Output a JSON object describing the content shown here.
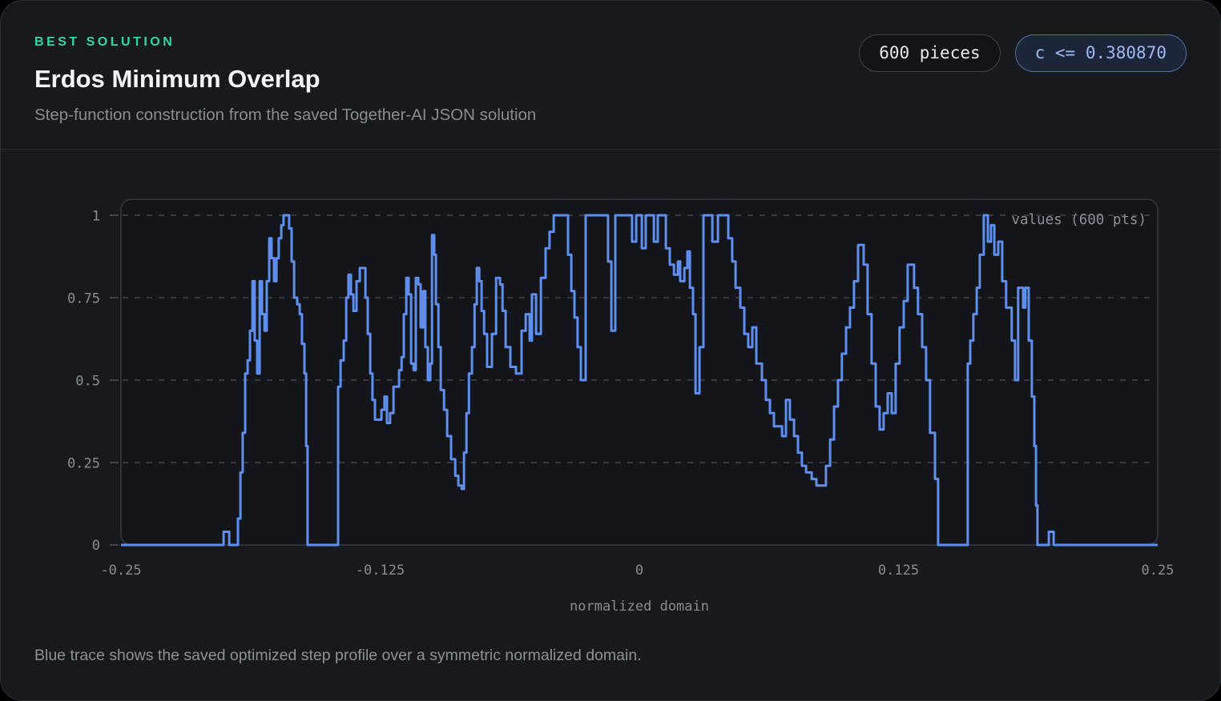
{
  "header": {
    "eyebrow": "BEST SOLUTION",
    "title": "Erdos Minimum Overlap",
    "subtitle": "Step-function construction from the saved Together-AI JSON solution",
    "badges": [
      {
        "label": "600 pieces",
        "style": "neutral"
      },
      {
        "label": "c <= 0.380870",
        "style": "accent"
      }
    ]
  },
  "footer": {
    "caption": "Blue trace shows the saved optimized step profile over a symmetric normalized domain."
  },
  "colors": {
    "page_background": "#000000",
    "card_background": "#17191d",
    "card_border": "#2b2e33",
    "accent_green": "#2ed9a0",
    "accent_blue_text": "#9db9f5",
    "accent_blue_border": "#4f6fa8",
    "trace_blue": "#5f8fee",
    "grid_gray": "#3e434a",
    "axis_text_gray": "#878d95"
  },
  "chart_data": {
    "type": "line",
    "interpolation": "step-after",
    "xlabel": "normalized domain",
    "ylabel": "",
    "xlim": [
      -0.25,
      0.25
    ],
    "ylim": [
      0,
      1
    ],
    "xticks": [
      -0.25,
      -0.125,
      0,
      0.125,
      0.25
    ],
    "xtick_labels": [
      "-0.25",
      "-0.125",
      "0",
      "0.125",
      "0.25"
    ],
    "ytick_labels": [
      "0",
      "0.25",
      "0.5",
      "0.75",
      "1"
    ],
    "grid": "horizontal-dashed",
    "legend_position": "top-right-inside",
    "series": [
      {
        "name": "values (600 pts)",
        "color": "#5f8fee",
        "points_claimed": 600,
        "steps": [
          [
            -0.25,
            0
          ],
          [
            -0.2005,
            0.04
          ],
          [
            -0.1978,
            0
          ],
          [
            -0.1936,
            0.08
          ],
          [
            -0.1924,
            0.22
          ],
          [
            -0.1913,
            0.34
          ],
          [
            -0.1901,
            0.52
          ],
          [
            -0.1889,
            0.56
          ],
          [
            -0.1878,
            0.65
          ],
          [
            -0.1866,
            0.8
          ],
          [
            -0.1855,
            0.62
          ],
          [
            -0.1843,
            0.52
          ],
          [
            -0.1831,
            0.8
          ],
          [
            -0.182,
            0.7
          ],
          [
            -0.1808,
            0.65
          ],
          [
            -0.1797,
            0.8
          ],
          [
            -0.1785,
            0.93
          ],
          [
            -0.1774,
            0.87
          ],
          [
            -0.1762,
            0.8
          ],
          [
            -0.175,
            0.87
          ],
          [
            -0.1739,
            0.93
          ],
          [
            -0.1727,
            0.97
          ],
          [
            -0.1716,
            1
          ],
          [
            -0.1689,
            0.96
          ],
          [
            -0.1677,
            0.86
          ],
          [
            -0.1665,
            0.75
          ],
          [
            -0.165,
            0.73
          ],
          [
            -0.1638,
            0.7
          ],
          [
            -0.1627,
            0.61
          ],
          [
            -0.1615,
            0.52
          ],
          [
            -0.1607,
            0.3
          ],
          [
            -0.16,
            0
          ],
          [
            -0.1453,
            0.48
          ],
          [
            -0.1441,
            0.56
          ],
          [
            -0.1426,
            0.62
          ],
          [
            -0.1414,
            0.75
          ],
          [
            -0.1403,
            0.82
          ],
          [
            -0.1391,
            0.76
          ],
          [
            -0.1379,
            0.71
          ],
          [
            -0.1364,
            0.8
          ],
          [
            -0.1348,
            0.84
          ],
          [
            -0.1321,
            0.75
          ],
          [
            -0.131,
            0.64
          ],
          [
            -0.1298,
            0.52
          ],
          [
            -0.1287,
            0.44
          ],
          [
            -0.1275,
            0.38
          ],
          [
            -0.1244,
            0.41
          ],
          [
            -0.1229,
            0.45
          ],
          [
            -0.1217,
            0.37
          ],
          [
            -0.1202,
            0.4
          ],
          [
            -0.1186,
            0.48
          ],
          [
            -0.1159,
            0.53
          ],
          [
            -0.1147,
            0.57
          ],
          [
            -0.1136,
            0.7
          ],
          [
            -0.1124,
            0.81
          ],
          [
            -0.1113,
            0.76
          ],
          [
            -0.1101,
            0.55
          ],
          [
            -0.1089,
            0.53
          ],
          [
            -0.1078,
            0.81
          ],
          [
            -0.1066,
            0.79
          ],
          [
            -0.1055,
            0.66
          ],
          [
            -0.1043,
            0.77
          ],
          [
            -0.1032,
            0.6
          ],
          [
            -0.102,
            0.5
          ],
          [
            -0.1008,
            0.55
          ],
          [
            -0.1,
            0.94
          ],
          [
            -0.0989,
            0.88
          ],
          [
            -0.0981,
            0.73
          ],
          [
            -0.0969,
            0.6
          ],
          [
            -0.0958,
            0.47
          ],
          [
            -0.0942,
            0.41
          ],
          [
            -0.0927,
            0.33
          ],
          [
            -0.0908,
            0.26
          ],
          [
            -0.0888,
            0.21
          ],
          [
            -0.0873,
            0.18
          ],
          [
            -0.0857,
            0.17
          ],
          [
            -0.0846,
            0.28
          ],
          [
            -0.0834,
            0.4
          ],
          [
            -0.0822,
            0.52
          ],
          [
            -0.0807,
            0.6
          ],
          [
            -0.0795,
            0.73
          ],
          [
            -0.0784,
            0.84
          ],
          [
            -0.0772,
            0.8
          ],
          [
            -0.0761,
            0.71
          ],
          [
            -0.0749,
            0.64
          ],
          [
            -0.0734,
            0.54
          ],
          [
            -0.0711,
            0.64
          ],
          [
            -0.0691,
            0.81
          ],
          [
            -0.0672,
            0.79
          ],
          [
            -0.066,
            0.71
          ],
          [
            -0.0645,
            0.6
          ],
          [
            -0.0622,
            0.54
          ],
          [
            -0.0595,
            0.52
          ],
          [
            -0.0568,
            0.65
          ],
          [
            -0.0548,
            0.7
          ],
          [
            -0.0529,
            0.62
          ],
          [
            -0.0518,
            0.76
          ],
          [
            -0.0498,
            0.64
          ],
          [
            -0.0475,
            0.81
          ],
          [
            -0.0452,
            0.9
          ],
          [
            -0.0433,
            0.95
          ],
          [
            -0.0413,
            1
          ],
          [
            -0.0344,
            0.88
          ],
          [
            -0.0328,
            0.77
          ],
          [
            -0.0313,
            0.69
          ],
          [
            -0.0298,
            0.6
          ],
          [
            -0.0282,
            0.5
          ],
          [
            -0.0259,
            1
          ],
          [
            -0.0151,
            0.86
          ],
          [
            -0.0135,
            0.65
          ],
          [
            -0.0116,
            1
          ],
          [
            -0.0035,
            0.92
          ],
          [
            -0.0015,
            1
          ],
          [
            0.0012,
            0.9
          ],
          [
            0.0031,
            1
          ],
          [
            0.007,
            0.92
          ],
          [
            0.0089,
            1
          ],
          [
            0.0128,
            0.9
          ],
          [
            0.0147,
            0.85
          ],
          [
            0.0167,
            0.82
          ],
          [
            0.0186,
            0.86
          ],
          [
            0.0197,
            0.8
          ],
          [
            0.0217,
            0.84
          ],
          [
            0.0232,
            0.89
          ],
          [
            0.0244,
            0.78
          ],
          [
            0.0259,
            0.7
          ],
          [
            0.0271,
            0.46
          ],
          [
            0.029,
            0.6
          ],
          [
            0.0309,
            1
          ],
          [
            0.0352,
            0.92
          ],
          [
            0.0379,
            1
          ],
          [
            0.0429,
            0.93
          ],
          [
            0.0448,
            0.86
          ],
          [
            0.0464,
            0.78
          ],
          [
            0.0487,
            0.72
          ],
          [
            0.0506,
            0.64
          ],
          [
            0.0525,
            0.6
          ],
          [
            0.0545,
            0.66
          ],
          [
            0.0564,
            0.55
          ],
          [
            0.0591,
            0.5
          ],
          [
            0.061,
            0.44
          ],
          [
            0.063,
            0.4
          ],
          [
            0.0649,
            0.36
          ],
          [
            0.0688,
            0.33
          ],
          [
            0.0707,
            0.44
          ],
          [
            0.0726,
            0.38
          ],
          [
            0.0746,
            0.33
          ],
          [
            0.0765,
            0.28
          ],
          [
            0.0784,
            0.24
          ],
          [
            0.0804,
            0.22
          ],
          [
            0.0831,
            0.2
          ],
          [
            0.0854,
            0.18
          ],
          [
            0.09,
            0.24
          ],
          [
            0.092,
            0.32
          ],
          [
            0.0939,
            0.42
          ],
          [
            0.0958,
            0.5
          ],
          [
            0.0977,
            0.58
          ],
          [
            0.0997,
            0.66
          ],
          [
            0.1016,
            0.72
          ],
          [
            0.1035,
            0.8
          ],
          [
            0.1055,
            0.91
          ],
          [
            0.1082,
            0.85
          ],
          [
            0.1101,
            0.7
          ],
          [
            0.112,
            0.55
          ],
          [
            0.114,
            0.42
          ],
          [
            0.1159,
            0.35
          ],
          [
            0.1178,
            0.4
          ],
          [
            0.1198,
            0.46
          ],
          [
            0.1217,
            0.4
          ],
          [
            0.1236,
            0.55
          ],
          [
            0.1255,
            0.66
          ],
          [
            0.1275,
            0.74
          ],
          [
            0.1294,
            0.85
          ],
          [
            0.1325,
            0.78
          ],
          [
            0.1344,
            0.7
          ],
          [
            0.1364,
            0.6
          ],
          [
            0.1383,
            0.5
          ],
          [
            0.1402,
            0.34
          ],
          [
            0.1426,
            0.2
          ],
          [
            0.1441,
            0
          ],
          [
            0.1584,
            0.55
          ],
          [
            0.1596,
            0.62
          ],
          [
            0.1611,
            0.7
          ],
          [
            0.1627,
            0.78
          ],
          [
            0.1642,
            0.88
          ],
          [
            0.1661,
            1
          ],
          [
            0.1681,
            0.92
          ],
          [
            0.1696,
            0.97
          ],
          [
            0.1712,
            0.88
          ],
          [
            0.1731,
            0.92
          ],
          [
            0.175,
            0.8
          ],
          [
            0.1769,
            0.72
          ],
          [
            0.1796,
            0.62
          ],
          [
            0.1812,
            0.5
          ],
          [
            0.1827,
            0.78
          ],
          [
            0.1851,
            0.72
          ],
          [
            0.1862,
            0.78
          ],
          [
            0.1878,
            0.62
          ],
          [
            0.1893,
            0.45
          ],
          [
            0.1905,
            0.3
          ],
          [
            0.1913,
            0.12
          ],
          [
            0.192,
            0
          ],
          [
            0.1975,
            0.04
          ],
          [
            0.1998,
            0
          ]
        ]
      }
    ]
  }
}
